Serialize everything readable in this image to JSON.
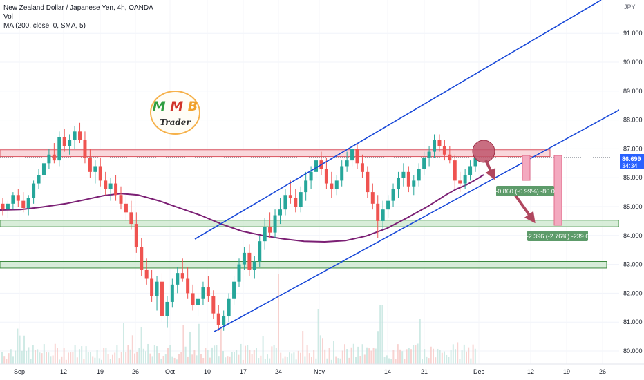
{
  "header": {
    "symbol_line": "New Zealand Dollar / Japanese Yen, 4h, OANDA",
    "vol_label": "Vol",
    "ma_label": "MA (200, close, 0, SMA, 5)"
  },
  "logo": {
    "letter1": "M",
    "letter2": "M",
    "letter3": "B",
    "word": "Trader"
  },
  "price_axis": {
    "currency": "JPY",
    "current_price": "86.699",
    "countdown": "34:34",
    "current_price_color": "#2962ff"
  },
  "annotations": {
    "measure1": "-0.860 (-0.99%) -86.0",
    "measure2": "-2.396 (-2.76%) -239.6"
  },
  "colors": {
    "up": "#26a69a",
    "down": "#ef5350",
    "channel": "#1848d8",
    "ma": "#7b1f74",
    "resistance_zone_fill": "#f7c6cc",
    "resistance_zone_stroke": "#d9535f",
    "support_zone_fill": "#c8e6c9",
    "support_zone_stroke": "#3b8a3e",
    "label_bg": "#5d9b6a",
    "arrow": "#b0475f",
    "measure_fill": "#f3a9bf"
  },
  "chart_data": {
    "type": "candlestick",
    "title": "New Zealand Dollar / Japanese Yen, 4h, OANDA",
    "y_ticks": [
      80.0,
      81.0,
      82.0,
      83.0,
      84.0,
      85.0,
      86.0,
      87.0,
      88.0,
      89.0,
      90.0,
      91.0
    ],
    "y_tick_labels": [
      "80.000",
      "81.000",
      "82.000",
      "83.000",
      "84.000",
      "85.000",
      "86.000",
      "87.000",
      "88.000",
      "89.000",
      "90.000",
      "91.000"
    ],
    "ylim": [
      79.8,
      92.0
    ],
    "x_labels": [
      "Sep",
      "12",
      "19",
      "26",
      "Oct",
      "10",
      "17",
      "24",
      "Nov",
      "14",
      "21",
      "Dec",
      "12",
      "19",
      "26"
    ],
    "series": [
      {
        "name": "MA (200, close, 0, SMA, 5)",
        "points": [
          [
            0,
            84.88
          ],
          [
            30,
            84.9
          ],
          [
            60,
            84.98
          ],
          [
            95,
            85.1
          ],
          [
            125,
            85.25
          ],
          [
            150,
            85.38
          ],
          [
            175,
            85.45
          ],
          [
            200,
            85.4
          ],
          [
            230,
            85.2
          ],
          [
            260,
            84.95
          ],
          [
            290,
            84.7
          ],
          [
            320,
            84.4
          ],
          [
            350,
            84.15
          ],
          [
            380,
            84.0
          ],
          [
            410,
            83.88
          ],
          [
            440,
            83.8
          ],
          [
            470,
            83.78
          ],
          [
            500,
            83.82
          ],
          [
            530,
            83.98
          ],
          [
            560,
            84.25
          ],
          [
            590,
            84.62
          ],
          [
            620,
            85.02
          ],
          [
            645,
            85.4
          ],
          [
            660,
            85.6
          ],
          [
            675,
            85.75
          ],
          [
            690,
            85.95
          ],
          [
            700,
            86.1
          ]
        ]
      }
    ],
    "ohlc": [
      [
        85.1,
        85.3,
        84.7,
        84.9
      ],
      [
        84.9,
        85.2,
        84.6,
        85.1
      ],
      [
        85.1,
        85.5,
        84.9,
        85.4
      ],
      [
        85.4,
        85.6,
        85.0,
        85.2
      ],
      [
        85.2,
        85.5,
        84.8,
        84.95
      ],
      [
        84.95,
        85.4,
        84.7,
        85.3
      ],
      [
        85.3,
        85.9,
        85.1,
        85.8
      ],
      [
        85.8,
        86.3,
        85.6,
        86.1
      ],
      [
        86.1,
        86.7,
        85.9,
        86.5
      ],
      [
        86.5,
        87.0,
        86.3,
        86.8
      ],
      [
        86.8,
        87.2,
        86.5,
        86.6
      ],
      [
        86.6,
        87.6,
        86.4,
        87.4
      ],
      [
        87.4,
        87.7,
        86.9,
        87.1
      ],
      [
        87.1,
        87.5,
        86.8,
        87.3
      ],
      [
        87.3,
        87.8,
        87.0,
        87.6
      ],
      [
        87.6,
        87.9,
        87.2,
        87.3
      ],
      [
        87.3,
        87.6,
        86.5,
        86.7
      ],
      [
        86.7,
        87.0,
        86.0,
        86.2
      ],
      [
        86.2,
        86.6,
        85.8,
        86.4
      ],
      [
        86.4,
        86.7,
        85.7,
        85.9
      ],
      [
        85.9,
        86.2,
        85.4,
        85.6
      ],
      [
        85.6,
        86.0,
        85.2,
        85.8
      ],
      [
        85.8,
        86.1,
        85.2,
        85.4
      ],
      [
        85.4,
        85.7,
        84.9,
        85.1
      ],
      [
        85.1,
        85.4,
        84.5,
        84.8
      ],
      [
        84.8,
        85.2,
        84.2,
        84.4
      ],
      [
        84.4,
        84.8,
        83.4,
        83.6
      ],
      [
        83.6,
        83.9,
        82.6,
        82.8
      ],
      [
        82.8,
        83.2,
        82.3,
        82.5
      ],
      [
        82.5,
        82.8,
        81.7,
        81.9
      ],
      [
        81.9,
        82.6,
        81.4,
        82.4
      ],
      [
        82.4,
        82.7,
        81.0,
        81.2
      ],
      [
        81.2,
        81.9,
        80.8,
        81.7
      ],
      [
        81.7,
        82.5,
        81.5,
        82.3
      ],
      [
        82.3,
        82.9,
        82.0,
        82.7
      ],
      [
        82.7,
        83.2,
        82.4,
        82.5
      ],
      [
        82.5,
        82.9,
        81.8,
        82.0
      ],
      [
        82.0,
        82.3,
        81.4,
        81.6
      ],
      [
        81.6,
        82.0,
        81.2,
        81.8
      ],
      [
        81.8,
        82.4,
        81.6,
        82.2
      ],
      [
        82.2,
        82.6,
        81.7,
        81.9
      ],
      [
        81.9,
        82.1,
        81.1,
        81.3
      ],
      [
        81.3,
        81.6,
        80.7,
        80.9
      ],
      [
        80.9,
        81.4,
        80.7,
        81.2
      ],
      [
        81.2,
        82.0,
        81.0,
        81.8
      ],
      [
        81.8,
        82.6,
        81.6,
        82.4
      ],
      [
        82.4,
        83.2,
        82.2,
        83.0
      ],
      [
        83.0,
        83.6,
        82.8,
        83.4
      ],
      [
        83.4,
        83.7,
        82.6,
        82.8
      ],
      [
        82.8,
        83.3,
        82.5,
        83.1
      ],
      [
        83.1,
        84.0,
        82.9,
        83.8
      ],
      [
        83.8,
        84.6,
        83.5,
        84.3
      ],
      [
        84.3,
        84.8,
        83.9,
        84.1
      ],
      [
        84.1,
        84.9,
        83.9,
        84.7
      ],
      [
        84.7,
        85.3,
        84.4,
        84.9
      ],
      [
        84.9,
        85.6,
        84.7,
        85.4
      ],
      [
        85.4,
        85.9,
        85.1,
        85.3
      ],
      [
        85.3,
        85.6,
        84.8,
        85.0
      ],
      [
        85.0,
        85.7,
        84.8,
        85.5
      ],
      [
        85.5,
        86.2,
        85.2,
        85.9
      ],
      [
        85.9,
        86.4,
        85.6,
        86.2
      ],
      [
        86.2,
        86.9,
        86.0,
        86.6
      ],
      [
        86.6,
        86.9,
        86.1,
        86.3
      ],
      [
        86.3,
        86.7,
        85.6,
        85.8
      ],
      [
        85.8,
        86.2,
        85.3,
        85.6
      ],
      [
        85.6,
        86.1,
        85.4,
        85.9
      ],
      [
        85.9,
        86.6,
        85.7,
        86.4
      ],
      [
        86.4,
        86.9,
        86.2,
        86.6
      ],
      [
        86.6,
        87.2,
        86.4,
        87.0
      ],
      [
        87.0,
        87.2,
        86.3,
        86.5
      ],
      [
        86.5,
        86.8,
        86.0,
        86.2
      ],
      [
        86.2,
        86.4,
        85.3,
        85.5
      ],
      [
        85.5,
        85.8,
        84.9,
        85.1
      ],
      [
        85.1,
        85.4,
        83.9,
        84.5
      ],
      [
        84.5,
        85.2,
        84.2,
        84.9
      ],
      [
        84.9,
        85.4,
        84.6,
        85.2
      ],
      [
        85.2,
        85.8,
        85.0,
        85.6
      ],
      [
        85.6,
        86.2,
        85.3,
        86.0
      ],
      [
        86.0,
        86.5,
        85.7,
        86.2
      ],
      [
        86.2,
        86.4,
        85.5,
        85.7
      ],
      [
        85.7,
        86.1,
        85.4,
        85.9
      ],
      [
        85.9,
        86.5,
        85.7,
        86.3
      ],
      [
        86.3,
        86.9,
        86.1,
        86.7
      ],
      [
        86.7,
        87.1,
        86.4,
        86.9
      ],
      [
        86.9,
        87.5,
        86.7,
        87.3
      ],
      [
        87.3,
        87.5,
        86.9,
        87.1
      ],
      [
        87.1,
        87.3,
        86.6,
        86.8
      ],
      [
        86.8,
        87.1,
        86.5,
        86.6
      ],
      [
        86.6,
        86.8,
        85.6,
        85.9
      ],
      [
        85.9,
        86.2,
        85.5,
        85.8
      ],
      [
        85.8,
        86.3,
        85.6,
        86.1
      ],
      [
        86.1,
        86.6,
        85.9,
        86.4
      ],
      [
        86.4,
        86.8,
        86.2,
        86.699
      ]
    ],
    "resistance_zone": [
      86.78,
      86.92
    ],
    "current_line": 86.699,
    "support_zone_1": [
      84.35,
      84.48
    ],
    "support_zone_2": [
      82.92,
      83.05
    ],
    "xlabel": "",
    "ylabel": ""
  }
}
